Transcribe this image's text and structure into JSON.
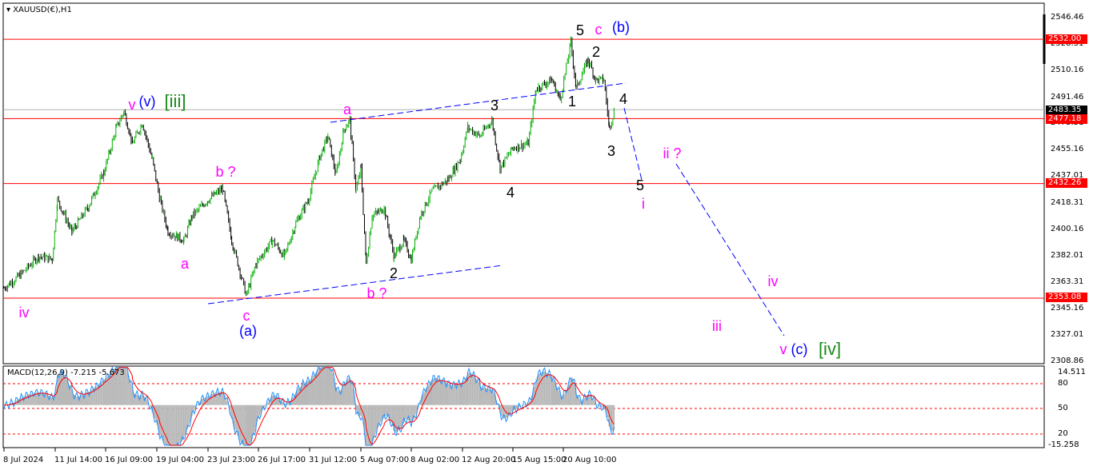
{
  "symbol_title": "XAUUSD(€),H1",
  "indicator_title": "MACD(12,26,9) -7.215 -5.673",
  "colors": {
    "bull": "#00b000",
    "bear": "#000000",
    "level_line": "#ff0000",
    "trendline": "#0000ff",
    "macd_signal": "#ff0000",
    "macd_main": "#1e90ff",
    "histogram": "#c0c0c0"
  },
  "price_axis": [
    "2546.46",
    "2528.31",
    "2510.16",
    "2491.46",
    "2473.31",
    "2455.16",
    "2437.01",
    "2418.31",
    "2400.16",
    "2382.01",
    "2363.31",
    "2345.16",
    "2327.01",
    "2308.86"
  ],
  "price_tags": {
    "level_1": "2532.00",
    "current": "2483.35",
    "level_2": "2477.18",
    "level_3": "2432.26",
    "level_4": "2353.08"
  },
  "macd_axis": [
    "14.511",
    "80",
    "50",
    "20",
    "-15.258"
  ],
  "time_axis": [
    "8 Jul 2024",
    "11 Jul 14:00",
    "16 Jul 09:00",
    "19 Jul 04:00",
    "23 Jul 23:00",
    "26 Jul 17:00",
    "31 Jul 12:00",
    "5 Aug 07:00",
    "8 Aug 02:00",
    "12 Aug 20:00",
    "15 Aug 15:00",
    "20 Aug 10:00"
  ],
  "wave_labels": {
    "iii_v": "v",
    "iii_v_paren": "(v)",
    "iii_bracket": "[iii]",
    "start_iv": "iv",
    "a1": "a",
    "b1": "b ?",
    "c1": "c",
    "a_paren": "(a)",
    "a2": "a",
    "b2": "b ?",
    "w2": "2",
    "w3": "3",
    "w4": "4",
    "w5": "5",
    "c2": "c",
    "b_paren": "(b)",
    "s2": "2",
    "s1": "1",
    "s4": "4",
    "s3": "3",
    "s5": "5",
    "si": "i",
    "proj_ii": "ii ?",
    "proj_iii": "iii",
    "proj_iv": "iv",
    "proj_v": "v",
    "proj_c": "(c)",
    "proj_iv_bracket": "[iv]"
  },
  "chart_data": {
    "type": "line",
    "title": "XAUUSD(€),H1",
    "ylim": [
      2308.86,
      2546.46
    ],
    "horizontal_levels": [
      2532.0,
      2477.18,
      2432.26,
      2353.08
    ],
    "current_price": 2483.35,
    "series": [
      {
        "x": [
          "2024-07-08 00:00",
          "2024-07-09 03:00",
          "2024-07-10 10:00",
          "2024-07-11 09:00",
          "2024-07-11 19:00",
          "2024-07-13 04:00",
          "2024-07-14 17:00",
          "2024-07-16 05:00",
          "2024-07-16 23:00",
          "2024-07-17 09:00",
          "2024-07-17 20:00",
          "2024-07-18 09:00",
          "2024-07-18 22:00",
          "2024-07-19 11:00",
          "2024-07-20 05:00",
          "2024-07-21 17:00",
          "2024-07-22 11:00",
          "2024-07-23 23:00",
          "2024-07-24 18:00",
          "2024-07-25 06:00",
          "2024-07-25 17:00",
          "2024-07-26 01:00",
          "2024-07-26 14:00",
          "2024-07-28 00:00",
          "2024-07-29 03:00",
          "2024-07-30 05:00",
          "2024-07-31 09:00",
          "2024-08-01 11:00",
          "2024-08-02 05:00",
          "2024-08-02 23:00",
          "2024-08-03 17:00",
          "2024-08-04 06:00",
          "2024-08-04 20:00",
          "2024-08-05 07:00",
          "2024-08-05 14:00",
          "2024-08-05 22:00",
          "2024-08-06 14:00",
          "2024-08-07 03:00",
          "2024-08-07 16:00",
          "2024-08-08 02:00",
          "2024-08-08 22:00",
          "2024-08-10 00:00",
          "2024-08-11 12:00",
          "2024-08-12 15:00",
          "2024-08-13 03:00",
          "2024-08-13 19:00",
          "2024-08-14 11:00",
          "2024-08-14 22:00",
          "2024-08-15 15:00",
          "2024-08-17 02:00",
          "2024-08-17 20:00",
          "2024-08-19 08:00",
          "2024-08-20 03:00",
          "2024-08-20 20:00",
          "2024-08-21 03:00",
          "2024-08-21 19:00",
          "2024-08-22 05:00",
          "2024-08-22 16:00",
          "2024-08-22 23:00",
          "2024-08-23 06:00"
        ],
        "y": [
          2360,
          2369,
          2382,
          2380,
          2421,
          2399,
          2416,
          2440,
          2471,
          2482,
          2460,
          2474,
          2449,
          2421,
          2399,
          2393,
          2410,
          2421,
          2429,
          2393,
          2371,
          2355,
          2377,
          2393,
          2382,
          2405,
          2421,
          2451,
          2465,
          2438,
          2470,
          2476,
          2427,
          2443,
          2377,
          2410,
          2415,
          2382,
          2393,
          2380,
          2410,
          2427,
          2435,
          2449,
          2471,
          2465,
          2476,
          2443,
          2457,
          2460,
          2498,
          2504,
          2490,
          2530,
          2498,
          2518,
          2504,
          2504,
          2471,
          2483
        ]
      }
    ],
    "macd": {
      "main": -7.215,
      "signal": -5.673,
      "ylim": [
        -15.258,
        14.511
      ],
      "levels": [
        80,
        50,
        20
      ]
    }
  }
}
